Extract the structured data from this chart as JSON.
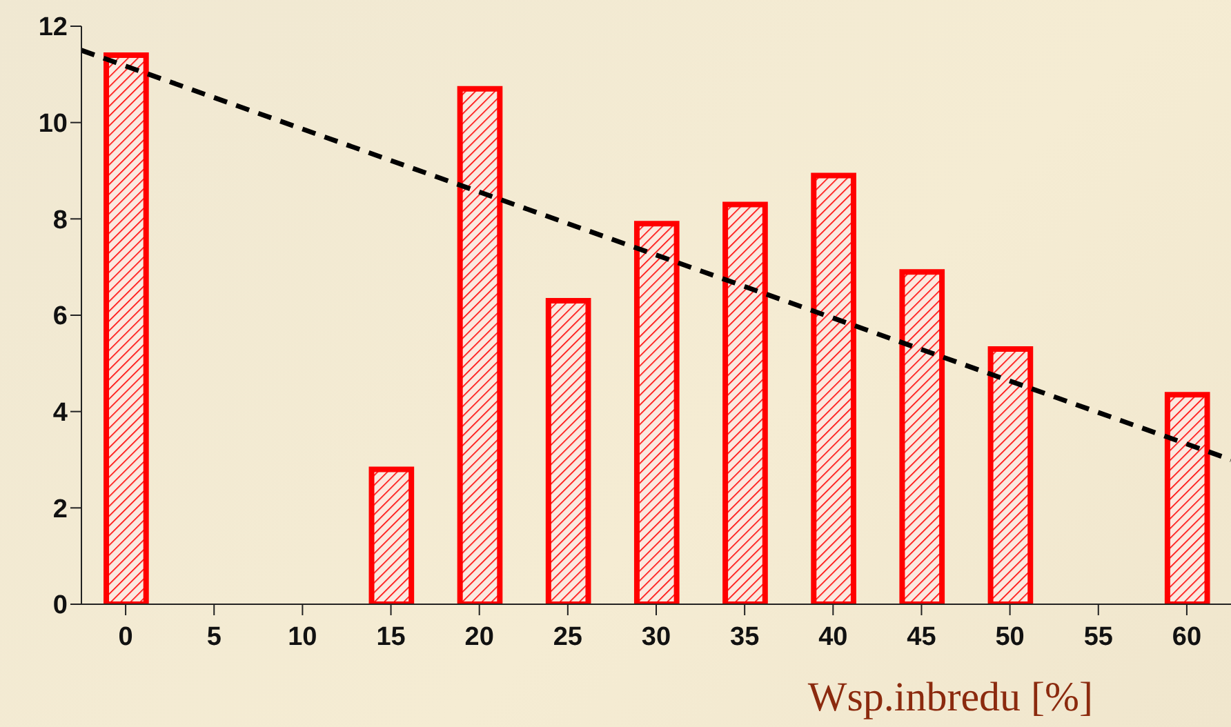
{
  "chart_data": {
    "type": "bar",
    "xlabel": "Wsp.inbredu [%]",
    "x": [
      0,
      5,
      10,
      15,
      20,
      25,
      30,
      35,
      40,
      45,
      50,
      55,
      60
    ],
    "series": [
      {
        "color": "#ff0000",
        "values": [
          11.4,
          0,
          0,
          2.8,
          10.7,
          6.3,
          7.9,
          8.3,
          8.9,
          6.9,
          5.3,
          0,
          4.35
        ]
      },
      {
        "type": "line",
        "color": "#000000",
        "line_style": "dashed",
        "marker": "none",
        "x": [
          -2.5,
          62.5
        ],
        "values": [
          11.5,
          3.0
        ]
      }
    ],
    "xlim": [
      -2.5,
      62.5
    ],
    "xticks": [
      0,
      5,
      10,
      15,
      20,
      25,
      30,
      35,
      40,
      45,
      50,
      55,
      60
    ],
    "ylim": [
      0,
      12
    ],
    "yticks": [
      0,
      2,
      4,
      6,
      8,
      10,
      12
    ],
    "grid": false
  }
}
